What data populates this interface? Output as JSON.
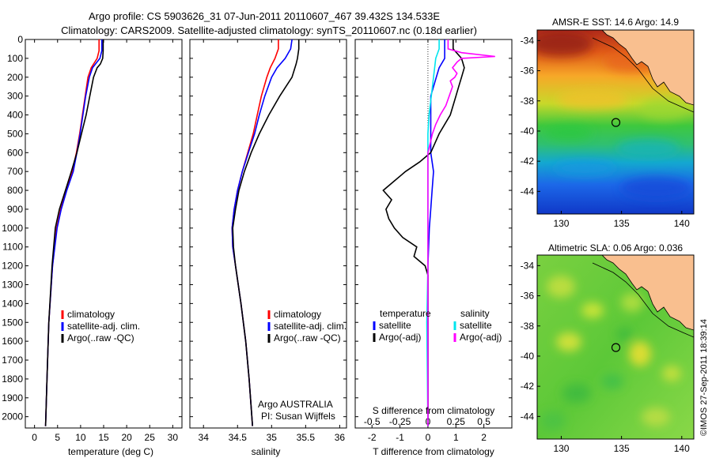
{
  "figure": {
    "title_line1": "Argo profile: CS 5903626_31 07-Jun-2011 20110607_467 39.432S 134.533E",
    "title_line2": "Climatology: CARS2009. Satellite-adjusted climatology: synTS_20110607.nc (0.18d earlier)",
    "credit": "©IMOS 27-Sep-2011 18:39:14"
  },
  "chart_data": [
    {
      "type": "line",
      "id": "temperature-profile",
      "xlabel": "temperature (deg C)",
      "xlim": [
        -2,
        32
      ],
      "ylim": [
        2060,
        0
      ],
      "xticks": [
        "0",
        "5",
        "10",
        "15",
        "20",
        "25",
        "30"
      ],
      "yticks": [
        "0",
        "100",
        "200",
        "300",
        "400",
        "500",
        "600",
        "700",
        "800",
        "900",
        "1000",
        "1100",
        "1200",
        "1300",
        "1400",
        "1500",
        "1600",
        "1700",
        "1800",
        "1900",
        "2000"
      ],
      "legend": [
        "climatology",
        "satellite-adj. clim.",
        "Argo(..raw -QC)"
      ],
      "colors": [
        "#ff0000",
        "#0000ff",
        "#000000"
      ],
      "series": [
        {
          "name": "climatology",
          "depth": [
            0,
            30,
            60,
            100,
            150,
            200,
            300,
            400,
            500,
            600,
            700,
            800,
            900,
            1000,
            1200,
            1500,
            1800,
            2050
          ],
          "values": [
            14.0,
            14.0,
            14.0,
            13.6,
            12.3,
            11.6,
            11.0,
            10.4,
            9.8,
            9.1,
            8.2,
            6.9,
            5.7,
            4.8,
            3.9,
            3.1,
            2.7,
            2.4
          ]
        },
        {
          "name": "satellite-adj. clim.",
          "depth": [
            0,
            30,
            60,
            100,
            150,
            200,
            300,
            400,
            500,
            600,
            700,
            800,
            900,
            1000,
            1200,
            1500,
            1800,
            2050
          ],
          "values": [
            14.6,
            14.6,
            14.6,
            14.2,
            12.6,
            11.9,
            11.1,
            10.5,
            9.9,
            9.2,
            8.4,
            7.0,
            5.8,
            4.9,
            3.9,
            3.1,
            2.7,
            2.4
          ]
        },
        {
          "name": "Argo(..raw -QC)",
          "depth": [
            0,
            30,
            60,
            100,
            130,
            150,
            200,
            300,
            400,
            500,
            600,
            700,
            800,
            900,
            1000,
            1200,
            1500,
            1800,
            2050
          ],
          "values": [
            14.9,
            14.9,
            14.9,
            14.8,
            14.3,
            13.6,
            12.8,
            12.0,
            11.2,
            10.2,
            9.2,
            8.0,
            6.7,
            5.4,
            4.5,
            3.8,
            3.1,
            2.7,
            2.4
          ]
        }
      ]
    },
    {
      "type": "line",
      "id": "salinity-profile",
      "xlabel": "salinity",
      "xlim": [
        33.8,
        36.1
      ],
      "ylim": [
        2060,
        0
      ],
      "xticks": [
        "34",
        "34.5",
        "35",
        "35.5",
        "36"
      ],
      "legend": [
        "climatology",
        "satellite-adj. clim.",
        "Argo(..raw -QC)"
      ],
      "colors": [
        "#ff0000",
        "#0000ff",
        "#000000"
      ],
      "annotation_line1": "Argo AUSTRALIA",
      "annotation_line2": "PI: Susan Wijffels",
      "series": [
        {
          "name": "climatology",
          "depth": [
            0,
            50,
            100,
            150,
            200,
            300,
            400,
            500,
            600,
            700,
            800,
            900,
            1000,
            1100,
            1200,
            1400,
            1600,
            1800,
            2050
          ],
          "values": [
            35.1,
            35.1,
            35.05,
            34.98,
            34.93,
            34.85,
            34.79,
            34.73,
            34.65,
            34.57,
            34.5,
            34.45,
            34.42,
            34.43,
            34.47,
            34.55,
            34.62,
            34.67,
            34.72
          ]
        },
        {
          "name": "satellite-adj. clim.",
          "depth": [
            0,
            50,
            100,
            150,
            200,
            300,
            400,
            500,
            600,
            700,
            800,
            900,
            1000,
            1100,
            1200,
            1400,
            1600,
            1800,
            2050
          ],
          "values": [
            35.3,
            35.28,
            35.2,
            35.08,
            35.0,
            34.9,
            34.82,
            34.75,
            34.66,
            34.57,
            34.5,
            34.45,
            34.42,
            34.43,
            34.47,
            34.55,
            34.62,
            34.67,
            34.72
          ]
        },
        {
          "name": "Argo(..raw -QC)",
          "depth": [
            0,
            50,
            100,
            130,
            200,
            300,
            400,
            500,
            600,
            700,
            800,
            900,
            1000,
            1100,
            1200,
            1400,
            1600,
            1800,
            2050
          ],
          "values": [
            35.4,
            35.4,
            35.38,
            35.36,
            35.3,
            35.12,
            34.96,
            34.82,
            34.7,
            34.6,
            34.52,
            34.47,
            34.43,
            34.44,
            34.47,
            34.55,
            34.62,
            34.67,
            34.72
          ]
        }
      ]
    },
    {
      "type": "line",
      "id": "difference-profile",
      "xlabel": "T difference from climatology",
      "xlabel_top": "S difference from climatology",
      "xlim": [
        -2.6,
        3.0
      ],
      "ylim": [
        2060,
        0
      ],
      "xticks": [
        "-2",
        "-1",
        "0",
        "1",
        "2"
      ],
      "xticks_top": [
        "-0.5",
        "-0.25",
        "0",
        "0.25",
        "0.5"
      ],
      "legend_left_title": "temperature",
      "legend_right_title": "salinity",
      "legend": [
        "satellite",
        "Argo(-adj)",
        "satellite",
        "Argo(-adj)"
      ],
      "colors": [
        "#0000ff",
        "#000000",
        "#00e5ee",
        "#ff00ff"
      ],
      "series": [
        {
          "name": "satellite",
          "depth": [
            0,
            50,
            100,
            150,
            200,
            300,
            400,
            500,
            600,
            700,
            800,
            900,
            1000,
            1200,
            1500,
            2050
          ],
          "values": [
            0.6,
            0.6,
            0.6,
            0.4,
            0.3,
            0.1,
            0.1,
            0.1,
            0.1,
            0.2,
            0.15,
            0.1,
            0.05,
            0.0,
            0.0,
            0.0
          ]
        },
        {
          "name": "Argo(-adj)",
          "depth": [
            0,
            50,
            100,
            150,
            200,
            250,
            300,
            400,
            500,
            600,
            650,
            700,
            750,
            800,
            850,
            900,
            950,
            1000,
            1050,
            1100,
            1150,
            1200,
            1250,
            1300,
            1500,
            2050
          ],
          "values": [
            0.9,
            0.9,
            1.2,
            1.3,
            1.2,
            1.1,
            1.0,
            0.8,
            0.4,
            0.1,
            -0.3,
            -0.8,
            -1.2,
            -1.6,
            -1.3,
            -1.5,
            -1.4,
            -1.2,
            -0.9,
            -0.4,
            -0.5,
            -0.1,
            0.0,
            0.0,
            0.0,
            0.0
          ]
        },
        {
          "name": "satellite",
          "depth": [
            0,
            50,
            100,
            200,
            300,
            400,
            500,
            600,
            700,
            800,
            1000,
            1200,
            1500,
            2050
          ],
          "values": [
            0.1,
            0.1,
            0.07,
            0.05,
            0.03,
            0.01,
            0.0,
            0.0,
            0.0,
            0.0,
            0.0,
            0.0,
            -0.01,
            0.0
          ]
        },
        {
          "name": "Argo(-adj)",
          "depth": [
            0,
            50,
            70,
            90,
            100,
            120,
            150,
            180,
            200,
            220,
            250,
            300,
            350,
            400,
            450,
            500,
            550,
            600,
            650,
            700,
            800,
            1000,
            1500,
            2050
          ],
          "values": [
            0.18,
            0.18,
            0.3,
            0.6,
            0.3,
            0.26,
            0.22,
            0.26,
            0.24,
            0.2,
            0.22,
            0.19,
            0.16,
            0.11,
            0.07,
            0.04,
            0.02,
            0.0,
            0.0,
            0.0,
            0.0,
            0.0,
            0.0,
            0.0
          ]
        }
      ]
    },
    {
      "type": "heatmap",
      "id": "sst-map",
      "title": "AMSR-E SST: 14.6 Argo: 14.9",
      "xlim": [
        128,
        141
      ],
      "ylim": [
        -45.5,
        -33.3
      ],
      "xticks": [
        "130",
        "135",
        "140"
      ],
      "yticks": [
        "-34",
        "-36",
        "-38",
        "-40",
        "-42",
        "-44"
      ],
      "profile_location": [
        134.533,
        -39.432
      ]
    },
    {
      "type": "heatmap",
      "id": "sla-map",
      "title": "Altimetric SLA: 0.06 Argo: 0.036",
      "xlim": [
        128,
        141
      ],
      "ylim": [
        -45.5,
        -33.3
      ],
      "xticks": [
        "130",
        "135",
        "140"
      ],
      "yticks": [
        "-34",
        "-36",
        "-38",
        "-40",
        "-42",
        "-44"
      ],
      "profile_location": [
        134.533,
        -39.432
      ]
    }
  ]
}
